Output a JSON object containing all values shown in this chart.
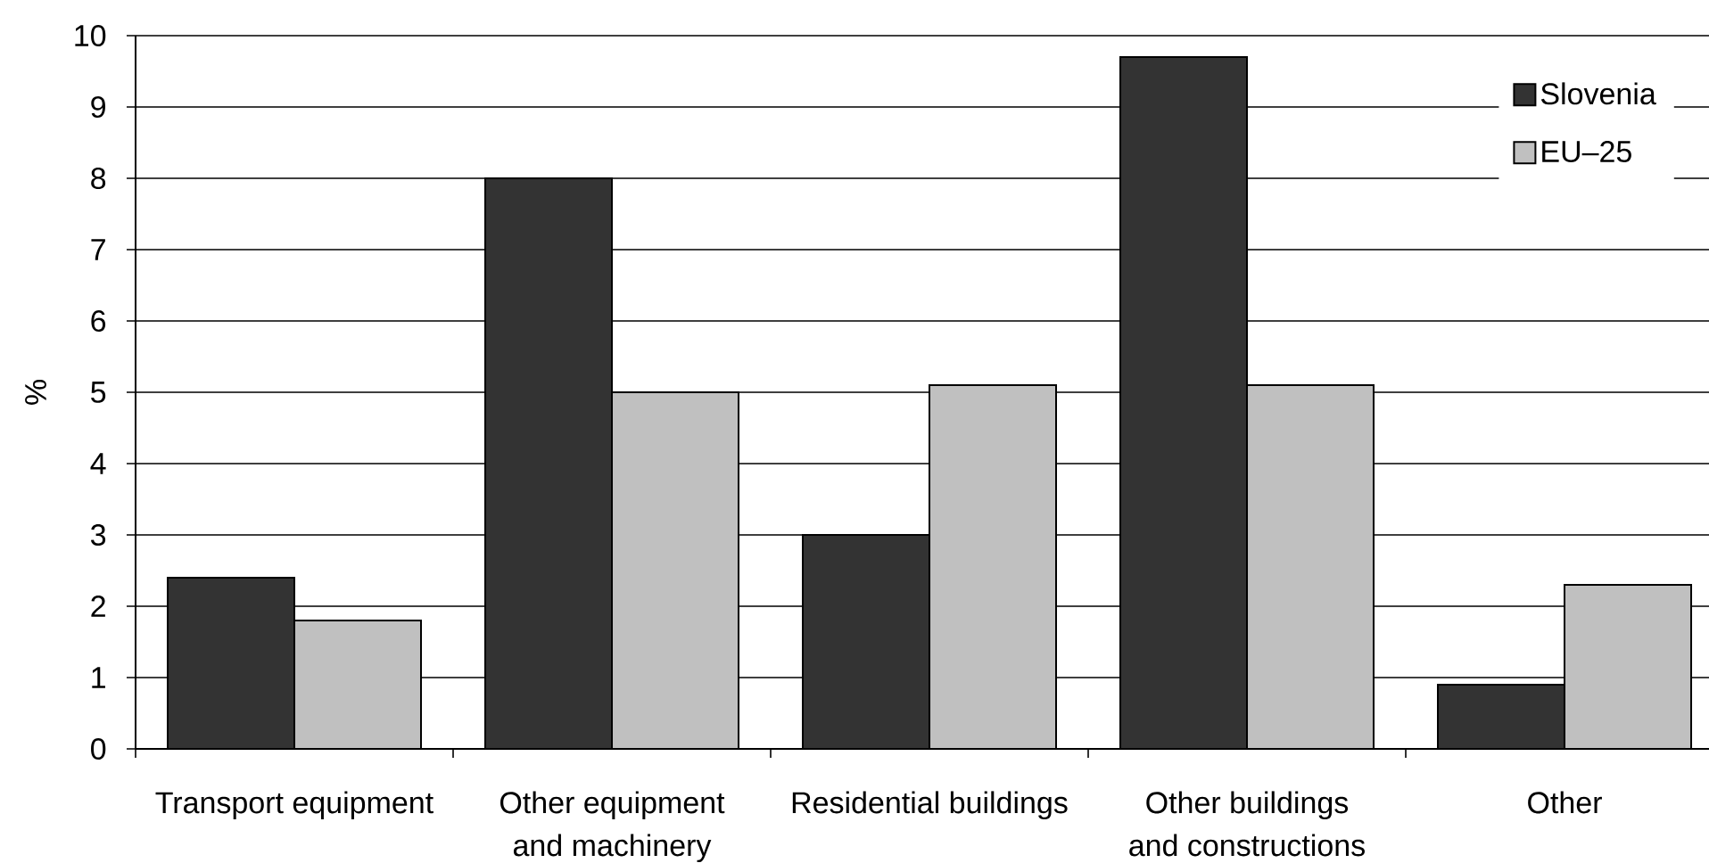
{
  "chart_data": {
    "type": "bar",
    "ylabel": "%",
    "categories": [
      "Transport equipment",
      "Other equipment and machinery",
      "Residential buildings",
      "Other buildings and constructions",
      "Other"
    ],
    "series": [
      {
        "name": "Slovenia",
        "color": "#333333",
        "values": [
          2.4,
          8.0,
          3.0,
          9.7,
          0.9
        ]
      },
      {
        "name": "EU–25",
        "color": "#c0c0c0",
        "values": [
          1.8,
          5.0,
          5.1,
          5.1,
          2.3
        ]
      }
    ],
    "ylim": [
      0,
      10
    ],
    "yticks": [
      0,
      1,
      2,
      3,
      4,
      5,
      6,
      7,
      8,
      9,
      10
    ],
    "grid": "y",
    "legend": "top right"
  }
}
